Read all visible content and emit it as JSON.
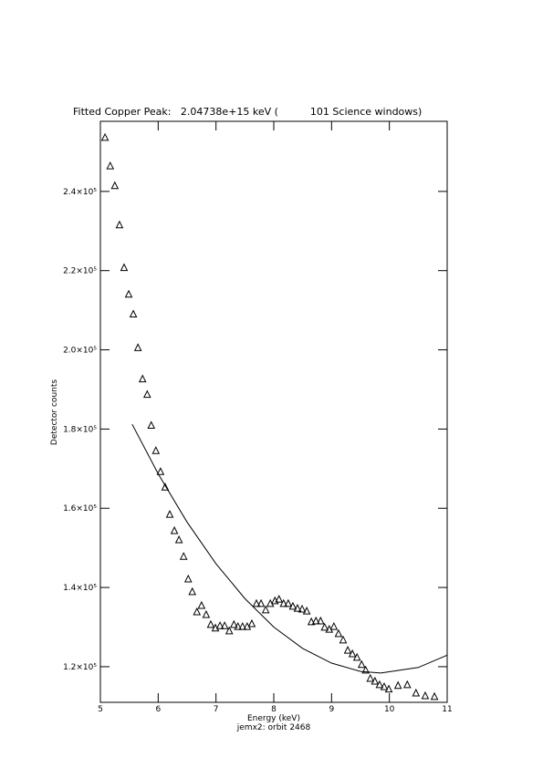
{
  "chart_data": {
    "type": "scatter",
    "title": "Fitted Copper Peak:   2.04738e+15 keV (          101 Science windows)",
    "x_label": "Energy (keV)",
    "subtitle": "jemx2: orbit 2468",
    "y_label": "Detector counts",
    "xlim": [
      5,
      11
    ],
    "xticks": [
      5,
      6,
      7,
      8,
      9,
      10,
      11
    ],
    "ylim": [
      111000,
      257700
    ],
    "yticks": [
      {
        "value": 120000,
        "label": "1.2×10⁵"
      },
      {
        "value": 140000,
        "label": "1.4×10⁵"
      },
      {
        "value": 160000,
        "label": "1.6×10⁵"
      },
      {
        "value": 180000,
        "label": "1.8×10⁵"
      },
      {
        "value": 200000,
        "label": "2.0×10⁵"
      },
      {
        "value": 220000,
        "label": "2.2×10⁵"
      },
      {
        "value": 240000,
        "label": "2.4×10⁵"
      }
    ],
    "series": [
      {
        "color": "#000000",
        "marker": "triangle",
        "x": [
          5.08,
          5.17,
          5.25,
          5.33,
          5.41,
          5.49,
          5.57,
          5.65,
          5.73,
          5.81,
          5.88,
          5.96,
          6.04,
          6.12,
          6.2,
          6.28,
          6.36,
          6.44,
          6.52,
          6.59,
          6.67,
          6.75,
          6.83,
          6.91,
          6.99,
          7.07,
          7.15,
          7.23,
          7.31,
          7.38,
          7.46,
          7.54,
          7.62,
          7.7,
          7.78,
          7.86,
          7.94,
          8.02,
          8.09,
          8.17,
          8.25,
          8.33,
          8.41,
          8.49,
          8.57,
          8.65,
          8.73,
          8.81,
          8.88,
          8.96,
          9.04,
          9.12,
          9.2,
          9.28,
          9.36,
          9.44,
          9.52,
          9.59,
          9.67,
          9.75,
          9.83,
          9.91,
          9.99,
          10.15,
          10.31,
          10.46,
          10.62,
          10.78
        ],
        "values": [
          253570,
          246400,
          241400,
          231500,
          220700,
          214000,
          209000,
          200500,
          192600,
          188700,
          180900,
          174500,
          169200,
          165300,
          158400,
          154300,
          152000,
          147800,
          142100,
          138900,
          133800,
          135400,
          133100,
          130600,
          129700,
          130300,
          130300,
          129000,
          130600,
          130100,
          130100,
          130100,
          130800,
          135900,
          135900,
          134300,
          135900,
          136600,
          137000,
          135900,
          135900,
          135200,
          134700,
          134500,
          134000,
          131300,
          131500,
          131500,
          129900,
          129400,
          130100,
          128300,
          126700,
          124100,
          123200,
          122300,
          120500,
          119100,
          117000,
          116300,
          115400,
          114900,
          114300,
          115200,
          115400,
          113300,
          112600,
          112400
        ]
      },
      {
        "color": "#000000",
        "marker": "line",
        "x": [
          5.55,
          6,
          6.5,
          7,
          7.5,
          8,
          8.5,
          9,
          9.5,
          9.85,
          10.5,
          11
        ],
        "values": [
          181200,
          168700,
          156500,
          146000,
          137200,
          130000,
          124600,
          120900,
          118800,
          118400,
          119800,
          122900
        ]
      }
    ]
  }
}
